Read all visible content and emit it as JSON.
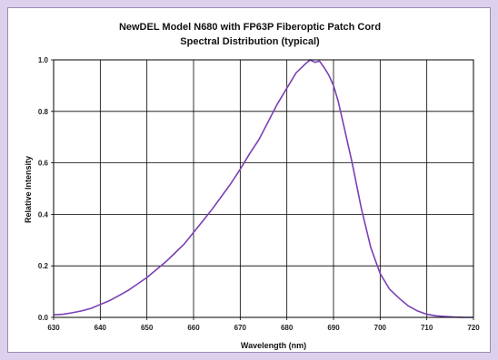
{
  "chart_data": {
    "type": "line",
    "title": "NewDEL Model N680 with FP63P Fiberoptic Patch Cord",
    "subtitle": "Spectral Distribution (typical)",
    "xlabel": "Wavelength (nm)",
    "ylabel": "Relative Intensity",
    "xlim": [
      630,
      720
    ],
    "ylim": [
      0,
      1.0
    ],
    "x_ticks": [
      "630",
      "640",
      "650",
      "660",
      "670",
      "680",
      "690",
      "700",
      "710",
      "720"
    ],
    "y_ticks": [
      "0.0",
      "0.2",
      "0.4",
      "0.6",
      "0.8",
      "1.0"
    ],
    "grid": true,
    "line_color": "#7b3fb5",
    "series": [
      {
        "x": [
          630,
          632,
          634,
          636,
          638,
          640,
          642,
          644,
          646,
          648,
          650,
          652,
          654,
          656,
          658,
          660,
          662,
          664,
          666,
          668,
          670,
          672,
          674,
          676,
          678,
          680,
          682,
          684,
          685,
          686,
          687,
          688,
          689,
          690,
          691,
          692,
          694,
          696,
          698,
          700,
          702,
          704,
          706,
          708,
          710,
          712,
          714,
          716,
          718,
          720
        ],
        "y": [
          0.01,
          0.012,
          0.018,
          0.025,
          0.035,
          0.05,
          0.065,
          0.085,
          0.105,
          0.13,
          0.155,
          0.185,
          0.215,
          0.25,
          0.285,
          0.33,
          0.375,
          0.42,
          0.47,
          0.52,
          0.575,
          0.635,
          0.69,
          0.76,
          0.83,
          0.89,
          0.95,
          0.985,
          1.0,
          0.99,
          0.995,
          0.97,
          0.94,
          0.9,
          0.84,
          0.76,
          0.6,
          0.42,
          0.27,
          0.17,
          0.11,
          0.075,
          0.045,
          0.025,
          0.012,
          0.006,
          0.003,
          0.001,
          0.0,
          0.0
        ]
      }
    ]
  }
}
